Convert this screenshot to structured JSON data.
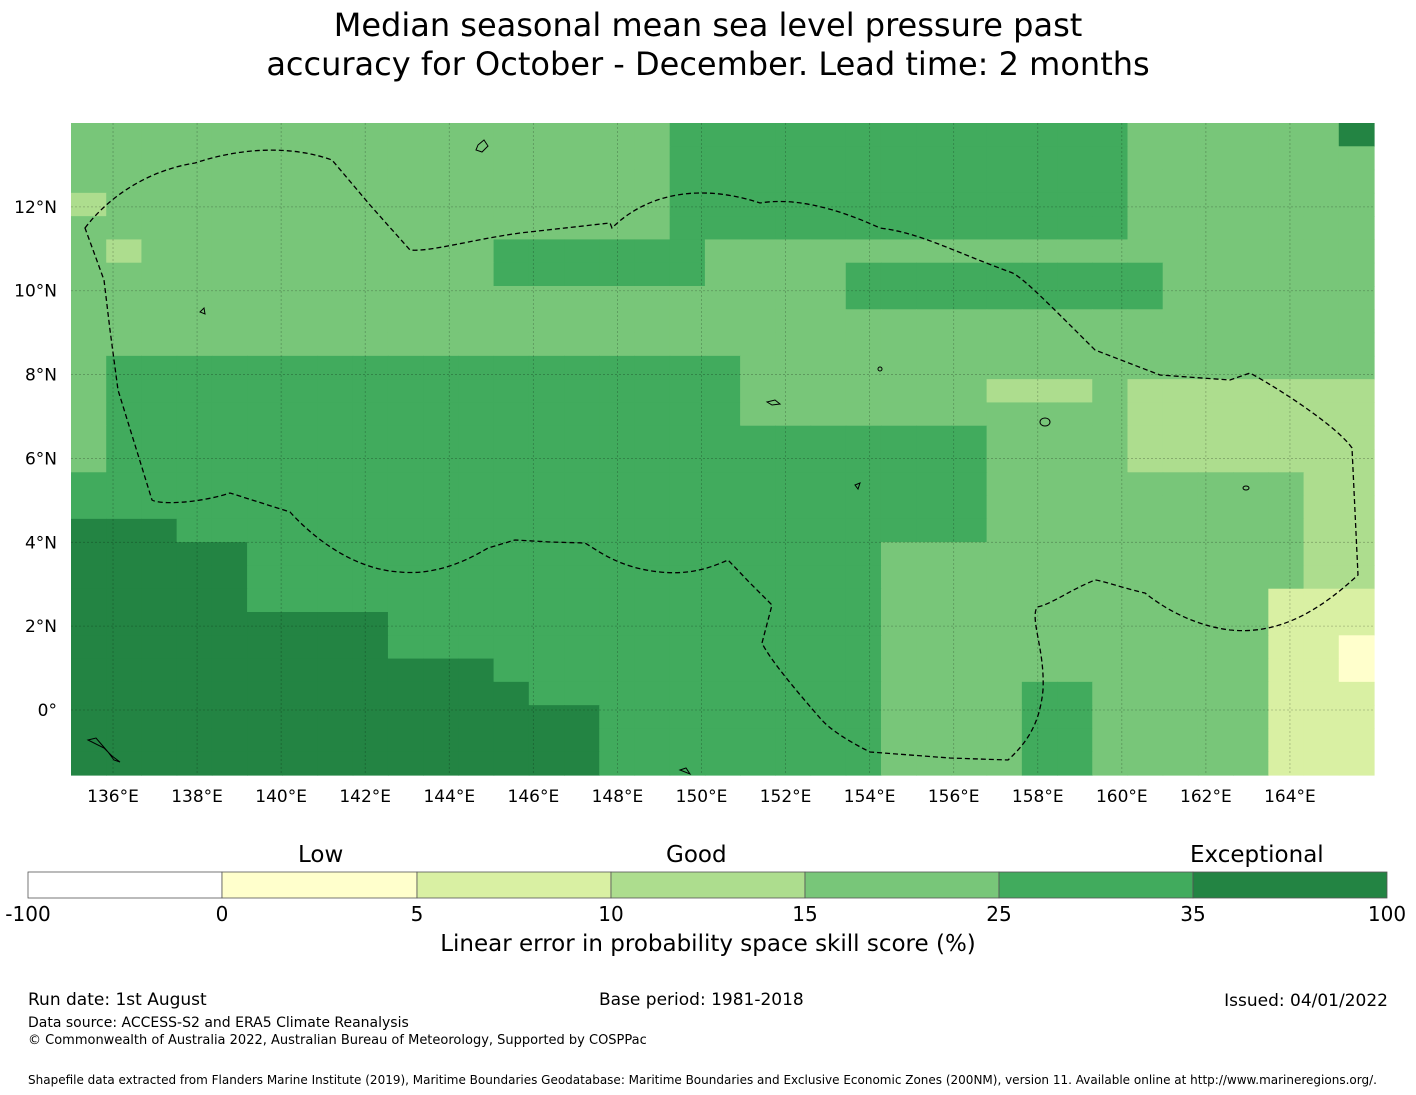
{
  "title": {
    "line1": "Median seasonal mean sea level pressure past",
    "line2": "accuracy for October - December. Lead time: 2 months"
  },
  "map": {
    "lon_labels": [
      "136°E",
      "138°E",
      "140°E",
      "142°E",
      "144°E",
      "146°E",
      "148°E",
      "150°E",
      "152°E",
      "154°E",
      "156°E",
      "158°E",
      "160°E",
      "162°E",
      "164°E"
    ],
    "lat_labels": [
      "12°N",
      "10°N",
      "8°N",
      "6°N",
      "4°N",
      "2°N",
      "0°"
    ],
    "colors": {
      "c0": "#ffffcc",
      "c1": "#d9f0a3",
      "c2": "#addd8e",
      "c3": "#78c679",
      "c4": "#41ab5d",
      "c5": "#238443"
    }
  },
  "colorbar": {
    "categories": [
      "Low",
      "Good",
      "Exceptional"
    ],
    "ticks": [
      "-100",
      "0",
      "5",
      "10",
      "15",
      "25",
      "35",
      "100"
    ],
    "colors": [
      "#ffffff",
      "#ffffcc",
      "#d9f0a3",
      "#addd8e",
      "#78c679",
      "#41ab5d",
      "#238443"
    ],
    "title": "Linear error in probability space skill score (%)"
  },
  "footer": {
    "run_date": "Run date: 1st August",
    "base_period": "Base period: 1981-2018",
    "issued": "Issued: 04/01/2022",
    "data_source": "Data source: ACCESS-S2 and ERA5 Climate Reanalysis",
    "copyright": "© Commonwealth of Australia 2022, Australian Bureau of Meteorology, Supported by COSPPac",
    "shapefile": "Shapefile data extracted from Flanders Marine Institute (2019), Maritime Boundaries Geodatabase: Maritime Boundaries and Exclusive Economic Zones (200NM), version 11. Available online at http://www.marineregions.org/."
  }
}
